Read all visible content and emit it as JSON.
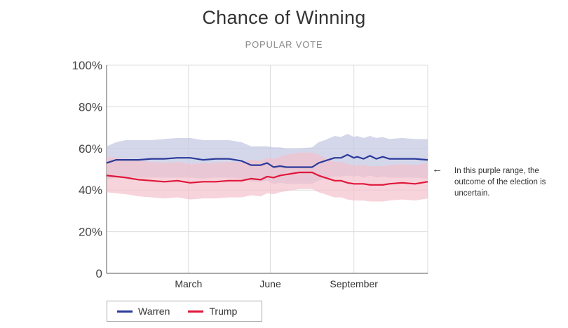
{
  "chart_data": {
    "type": "line",
    "title": "Chance of Winning",
    "subtitle": "POPULAR VOTE",
    "xlabel": "",
    "ylabel": "",
    "ylim": [
      0,
      100
    ],
    "y_ticks": [
      "0",
      "20%",
      "40%",
      "60%",
      "80%",
      "100%"
    ],
    "y_tick_values": [
      0,
      20,
      40,
      60,
      80,
      100
    ],
    "x_ticks": [
      {
        "label": "March",
        "x": 0.255
      },
      {
        "label": "June",
        "x": 0.51
      },
      {
        "label": "September",
        "x": 0.77
      }
    ],
    "grid": true,
    "legend_placement": "bottom-left",
    "x": [
      0,
      0.03,
      0.06,
      0.1,
      0.14,
      0.18,
      0.22,
      0.26,
      0.3,
      0.34,
      0.38,
      0.42,
      0.45,
      0.48,
      0.5,
      0.52,
      0.54,
      0.56,
      0.6,
      0.64,
      0.66,
      0.68,
      0.71,
      0.73,
      0.75,
      0.77,
      0.78,
      0.8,
      0.82,
      0.84,
      0.86,
      0.88,
      0.92,
      0.96,
      1.0
    ],
    "series": [
      {
        "name": "Warren",
        "color": "#2b3a9a",
        "band_color": "#c5c9e3",
        "values": [
          53,
          54.5,
          54.5,
          54.5,
          55,
          55,
          55.5,
          55.5,
          54.5,
          55,
          55,
          54,
          52,
          52,
          53,
          51,
          51.5,
          51,
          51,
          51,
          53,
          54,
          55.5,
          55.5,
          57,
          55.5,
          56,
          55,
          56.5,
          55,
          56,
          55,
          55,
          55,
          54.5
        ],
        "upper": [
          61,
          63,
          64,
          64,
          64,
          64.5,
          65,
          65,
          64,
          64,
          64,
          63,
          61,
          61,
          61,
          60.5,
          60.5,
          60,
          60,
          60.5,
          63,
          64,
          66,
          65.5,
          67,
          65.5,
          66,
          65,
          66,
          65,
          65.5,
          64.5,
          65,
          64.5,
          64.5
        ],
        "lower": [
          45,
          46,
          46,
          46,
          46,
          46,
          46,
          46,
          45.5,
          46,
          46,
          45.5,
          44,
          44,
          44.5,
          43,
          43.5,
          43,
          43,
          43,
          44.5,
          45.5,
          46.5,
          46.5,
          47,
          46.5,
          47,
          46,
          47,
          46,
          46.5,
          46,
          46,
          46,
          45.5
        ]
      },
      {
        "name": "Trump",
        "color": "#e0173a",
        "band_color": "#f3c1cc",
        "values": [
          47,
          46.5,
          46,
          45,
          44.5,
          44,
          44.5,
          43.5,
          44,
          44,
          44.5,
          44.5,
          45.5,
          45,
          46.5,
          46,
          47,
          47.5,
          48.5,
          48.5,
          47,
          46,
          44.5,
          44.5,
          43.5,
          43,
          43,
          43,
          42.5,
          42.5,
          42.5,
          43,
          43.5,
          43,
          44
        ],
        "upper": [
          56,
          55.5,
          55,
          54,
          53.5,
          53,
          53.5,
          52.5,
          53,
          53,
          53.5,
          53.5,
          54.5,
          54,
          55.5,
          55,
          56,
          57,
          58,
          58,
          57,
          55.5,
          53.5,
          53.5,
          52.5,
          52,
          52,
          52,
          51.5,
          51.5,
          51.5,
          52,
          52.5,
          52,
          53
        ],
        "lower": [
          39,
          38.5,
          38,
          37,
          36.5,
          36,
          36.5,
          35.5,
          36,
          36,
          36.5,
          36.5,
          37.5,
          37,
          38.5,
          38,
          39,
          39.5,
          40.5,
          40.5,
          39,
          38,
          36.5,
          36.5,
          35.5,
          35,
          35,
          35,
          34.5,
          34.5,
          34.5,
          35,
          35.5,
          35,
          36
        ]
      }
    ],
    "annotation": "In this purple range, the outcome of the election is uncertain.",
    "annotation_arrow": "←"
  }
}
